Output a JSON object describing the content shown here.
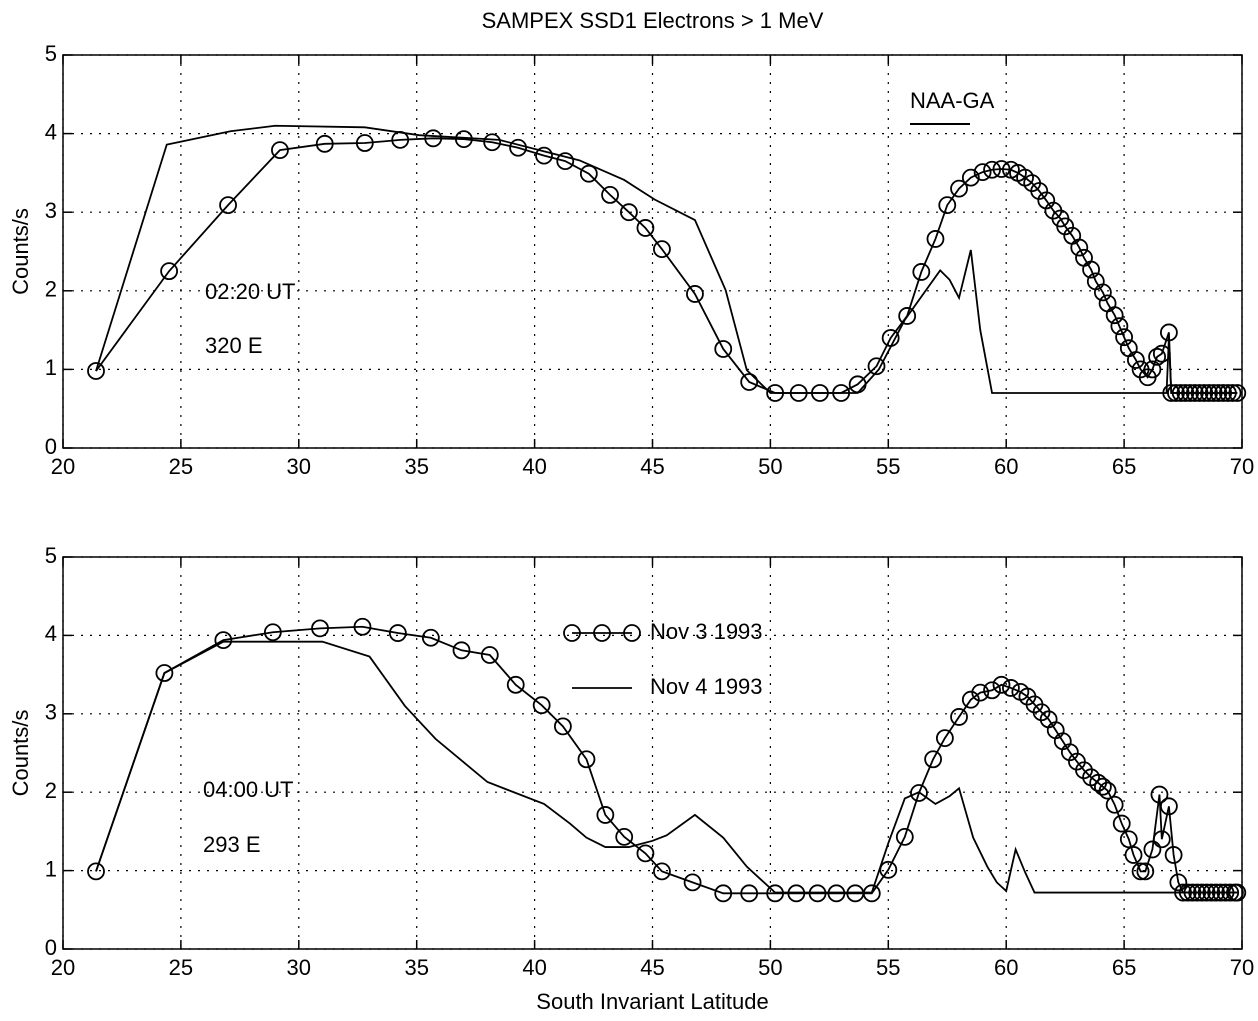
{
  "chart_data": [
    {
      "type": "line",
      "title": "SAMPEX SSD1 Electrons > 1 MeV",
      "ylabel": "Counts/s",
      "annotations": [
        "02:20 UT",
        "320 E",
        "NAA-GA"
      ],
      "xlim": [
        20,
        70
      ],
      "ylim": [
        0,
        5
      ],
      "xticks": [
        20,
        25,
        30,
        35,
        40,
        45,
        50,
        55,
        60,
        65,
        70
      ],
      "yticks": [
        0,
        1,
        2,
        3,
        4,
        5
      ],
      "grid": true,
      "series": [
        {
          "color": "#000000",
          "marker": "o",
          "x": [
            21.4,
            24.5,
            27.0,
            29.2,
            31.1,
            32.8,
            34.3,
            35.7,
            37.0,
            38.2,
            39.3,
            40.4,
            41.3,
            42.3,
            43.2,
            44.0,
            44.7,
            45.4,
            46.8,
            48.0,
            49.1,
            50.2,
            51.2,
            52.1,
            53.0,
            53.7,
            54.5,
            55.1,
            55.8,
            56.4,
            57.0,
            57.5,
            58.0,
            58.5,
            59.0,
            59.4,
            59.8,
            60.2,
            60.5,
            60.8,
            61.1,
            61.4,
            61.7,
            62.0,
            62.3,
            62.5,
            62.8,
            63.1,
            63.3,
            63.6,
            63.8,
            64.1,
            64.3,
            64.6,
            64.8,
            65.0,
            65.2,
            65.5,
            65.7,
            66.0,
            66.2,
            66.4,
            66.6,
            66.9,
            67.0,
            67.2,
            67.4,
            67.6,
            67.8,
            68.0,
            68.2,
            68.4,
            68.6,
            68.8,
            69.0,
            69.2,
            69.4,
            69.6,
            69.8
          ],
          "values": [
            0.98,
            2.25,
            3.09,
            3.79,
            3.87,
            3.88,
            3.92,
            3.94,
            3.93,
            3.89,
            3.82,
            3.72,
            3.65,
            3.49,
            3.22,
            3.0,
            2.8,
            2.53,
            1.96,
            1.26,
            0.84,
            0.7,
            0.7,
            0.7,
            0.7,
            0.81,
            1.04,
            1.4,
            1.68,
            2.24,
            2.66,
            3.09,
            3.3,
            3.44,
            3.51,
            3.54,
            3.55,
            3.54,
            3.5,
            3.44,
            3.37,
            3.27,
            3.15,
            3.02,
            2.92,
            2.82,
            2.7,
            2.55,
            2.42,
            2.27,
            2.12,
            1.98,
            1.84,
            1.69,
            1.55,
            1.41,
            1.27,
            1.12,
            1.0,
            0.9,
            1.0,
            1.16,
            1.2,
            1.47,
            0.7,
            0.7,
            0.7,
            0.7,
            0.7,
            0.7,
            0.7,
            0.7,
            0.7,
            0.7,
            0.7,
            0.7,
            0.7,
            0.7,
            0.7
          ]
        },
        {
          "color": "#000000",
          "x": [
            21.4,
            24.4,
            27.1,
            29.0,
            32.8,
            35.1,
            38.5,
            40.2,
            41.9,
            43.8,
            45.1,
            46.8,
            48.1,
            49.0,
            50.0,
            53.7,
            54.6,
            55.7,
            57.2,
            57.6,
            58.0,
            58.5,
            58.9,
            59.4,
            66.8,
            66.9,
            67.0,
            69.8
          ],
          "values": [
            0.98,
            3.86,
            4.03,
            4.1,
            4.08,
            3.98,
            3.92,
            3.79,
            3.66,
            3.41,
            3.16,
            2.9,
            2.01,
            0.99,
            0.7,
            0.7,
            1.0,
            1.63,
            2.26,
            2.14,
            1.91,
            2.52,
            1.5,
            0.7,
            0.7,
            1.4,
            0.7,
            0.7
          ]
        }
      ]
    },
    {
      "type": "line",
      "ylabel": "Counts/s",
      "xlabel": "South Invariant Latitude",
      "annotations": [
        "04:00 UT",
        "293 E"
      ],
      "xlim": [
        20,
        70
      ],
      "ylim": [
        0,
        5
      ],
      "xticks": [
        20,
        25,
        30,
        35,
        40,
        45,
        50,
        55,
        60,
        65,
        70
      ],
      "yticks": [
        0,
        1,
        2,
        3,
        4,
        5
      ],
      "grid": true,
      "series": [
        {
          "name": "Nov 3 1993",
          "color": "#000000",
          "marker": "o",
          "x": [
            21.4,
            24.3,
            26.8,
            28.9,
            30.9,
            32.7,
            34.2,
            35.6,
            36.9,
            38.1,
            39.2,
            40.3,
            41.2,
            42.2,
            43.0,
            43.8,
            44.7,
            45.4,
            46.7,
            48.0,
            49.1,
            50.2,
            51.1,
            52.0,
            52.8,
            53.6,
            54.3,
            55.0,
            55.7,
            56.3,
            56.9,
            57.4,
            58.0,
            58.5,
            58.9,
            59.4,
            59.8,
            60.2,
            60.6,
            60.9,
            61.2,
            61.5,
            61.8,
            62.1,
            62.4,
            62.7,
            63.0,
            63.3,
            63.6,
            63.9,
            64.1,
            64.3,
            64.6,
            64.9,
            65.2,
            65.4,
            65.7,
            65.9,
            66.2,
            66.5,
            66.6,
            66.9,
            67.1,
            67.3,
            67.5,
            67.7,
            67.9,
            68.1,
            68.3,
            68.5,
            68.7,
            68.9,
            69.1,
            69.3,
            69.5,
            69.7,
            69.8
          ],
          "values": [
            0.99,
            3.52,
            3.94,
            4.04,
            4.09,
            4.11,
            4.03,
            3.97,
            3.81,
            3.75,
            3.37,
            3.11,
            2.84,
            2.42,
            1.71,
            1.43,
            1.22,
            0.99,
            0.85,
            0.71,
            0.71,
            0.71,
            0.71,
            0.71,
            0.71,
            0.71,
            0.71,
            1.01,
            1.43,
            1.99,
            2.42,
            2.69,
            2.96,
            3.18,
            3.27,
            3.3,
            3.37,
            3.33,
            3.28,
            3.22,
            3.12,
            3.02,
            2.93,
            2.79,
            2.65,
            2.51,
            2.39,
            2.28,
            2.19,
            2.12,
            2.07,
            2.02,
            1.84,
            1.6,
            1.4,
            1.2,
            0.99,
            0.99,
            1.27,
            1.97,
            1.4,
            1.82,
            1.2,
            0.85,
            0.72,
            0.72,
            0.72,
            0.72,
            0.72,
            0.72,
            0.72,
            0.72,
            0.72,
            0.72,
            0.72,
            0.72,
            0.72
          ]
        },
        {
          "name": "Nov 4 1993",
          "color": "#000000",
          "x": [
            21.4,
            24.3,
            26.8,
            31.0,
            33.0,
            34.5,
            35.8,
            38.0,
            40.4,
            41.5,
            42.2,
            43.0,
            44.0,
            45.0,
            45.6,
            46.8,
            48.0,
            49.0,
            50.2,
            54.3,
            55.0,
            55.7,
            56.3,
            57.0,
            57.6,
            58.0,
            58.6,
            59.2,
            59.6,
            60.0,
            60.4,
            60.8,
            61.2,
            69.8
          ],
          "values": [
            0.99,
            3.52,
            3.92,
            3.92,
            3.73,
            3.1,
            2.68,
            2.13,
            1.85,
            1.6,
            1.42,
            1.3,
            1.3,
            1.38,
            1.45,
            1.71,
            1.42,
            1.05,
            0.72,
            0.72,
            1.35,
            1.92,
            2.0,
            1.85,
            1.95,
            2.05,
            1.42,
            1.05,
            0.85,
            0.74,
            1.27,
            0.98,
            0.72,
            0.72
          ]
        }
      ]
    }
  ]
}
